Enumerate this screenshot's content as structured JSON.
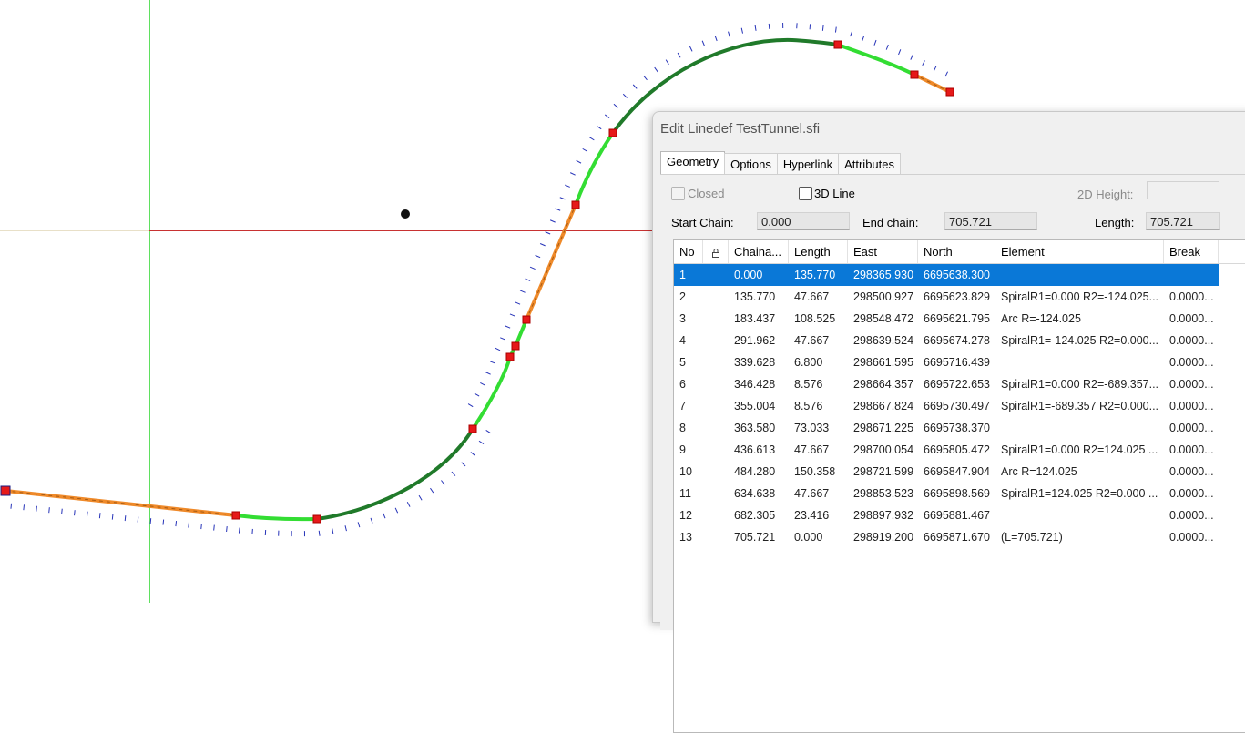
{
  "colors": {
    "axis_vertical": "#5fe05f",
    "axis_horizontal": "#c83232",
    "spiral": "#33dd33",
    "arc": "#207a2a",
    "straight": "#ef8a2a",
    "vertex": "#e61919",
    "selection": "#0a78d7"
  },
  "dialog": {
    "title": "Edit Linedef TestTunnel.sfi",
    "tabs": [
      "Geometry",
      "Options",
      "Hyperlink",
      "Attributes"
    ],
    "active_tab": "Geometry",
    "closed_label": "Closed",
    "line3d_label": "3D Line",
    "height2d_label": "2D Height:",
    "height2d_value": "",
    "start_chain_label": "Start Chain:",
    "start_chain_value": "0.000",
    "end_chain_label": "End chain:",
    "end_chain_value": "705.721",
    "length_label": "Length:",
    "length_value": "705.721"
  },
  "table": {
    "headers": [
      "No",
      "lock-icon",
      "Chaina...",
      "Length",
      "East",
      "North",
      "Element",
      "Break"
    ],
    "selected_row": 0,
    "rows": [
      [
        "1",
        "",
        "0.000",
        "135.770",
        "298365.930",
        "6695638.300",
        "",
        ""
      ],
      [
        "2",
        "",
        "135.770",
        "47.667",
        "298500.927",
        "6695623.829",
        "SpiralR1=0.000 R2=-124.025...",
        "0.0000..."
      ],
      [
        "3",
        "",
        "183.437",
        "108.525",
        "298548.472",
        "6695621.795",
        "Arc R=-124.025",
        "0.0000..."
      ],
      [
        "4",
        "",
        "291.962",
        "47.667",
        "298639.524",
        "6695674.278",
        "SpiralR1=-124.025 R2=0.000...",
        "0.0000..."
      ],
      [
        "5",
        "",
        "339.628",
        "6.800",
        "298661.595",
        "6695716.439",
        "",
        "0.0000..."
      ],
      [
        "6",
        "",
        "346.428",
        "8.576",
        "298664.357",
        "6695722.653",
        "SpiralR1=0.000 R2=-689.357...",
        "0.0000..."
      ],
      [
        "7",
        "",
        "355.004",
        "8.576",
        "298667.824",
        "6695730.497",
        "SpiralR1=-689.357 R2=0.000...",
        "0.0000..."
      ],
      [
        "8",
        "",
        "363.580",
        "73.033",
        "298671.225",
        "6695738.370",
        "",
        "0.0000..."
      ],
      [
        "9",
        "",
        "436.613",
        "47.667",
        "298700.054",
        "6695805.472",
        "SpiralR1=0.000 R2=124.025 ...",
        "0.0000..."
      ],
      [
        "10",
        "",
        "484.280",
        "150.358",
        "298721.599",
        "6695847.904",
        "Arc R=124.025",
        "0.0000..."
      ],
      [
        "11",
        "",
        "634.638",
        "47.667",
        "298853.523",
        "6695898.569",
        "SpiralR1=124.025 R2=0.000 ...",
        "0.0000..."
      ],
      [
        "12",
        "",
        "682.305",
        "23.416",
        "298897.932",
        "6695881.467",
        "",
        "0.0000..."
      ],
      [
        "13",
        "",
        "705.721",
        "0.000",
        "298919.200",
        "6695871.670",
        " (L=705.721)",
        "0.0000..."
      ]
    ]
  }
}
